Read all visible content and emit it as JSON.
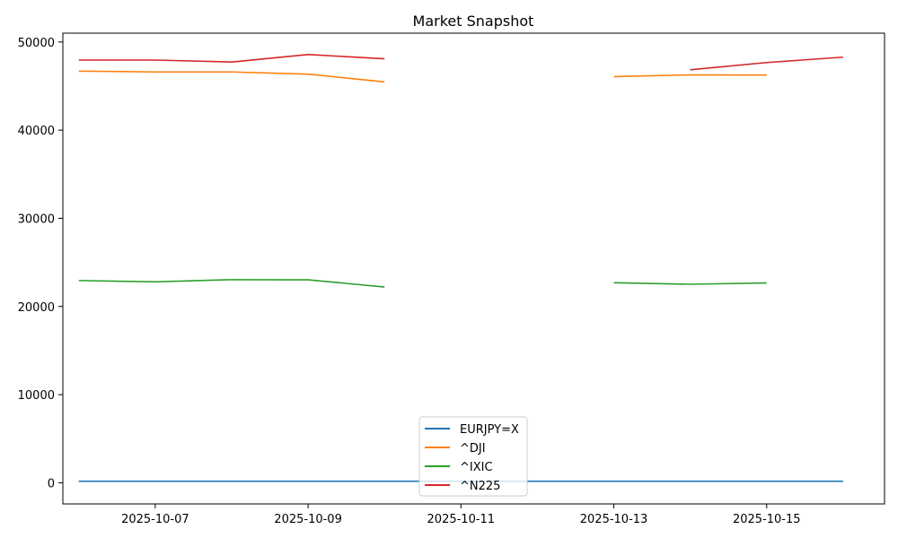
{
  "chart_data": {
    "type": "line",
    "title": "Market Snapshot",
    "xlabel": "",
    "ylabel": "",
    "x": [
      "2025-10-06",
      "2025-10-07",
      "2025-10-08",
      "2025-10-09",
      "2025-10-10",
      "2025-10-11",
      "2025-10-12",
      "2025-10-13",
      "2025-10-14",
      "2025-10-15",
      "2025-10-16"
    ],
    "xlim": [
      "2025-10-05T19:00",
      "2025-10-16T13:00"
    ],
    "ylim": [
      -2400,
      51000
    ],
    "xticks": [
      "2025-10-07",
      "2025-10-09",
      "2025-10-11",
      "2025-10-13",
      "2025-10-15"
    ],
    "yticks": [
      0,
      10000,
      20000,
      30000,
      40000,
      50000
    ],
    "grid": false,
    "legend_position": "lower center",
    "series": [
      {
        "name": "EURJPY=X",
        "color": "#1f77b4",
        "values": [
          176,
          176,
          177,
          177,
          176,
          175,
          175,
          175,
          176,
          176,
          176
        ]
      },
      {
        "name": "^DJI",
        "color": "#ff7f0e",
        "values": [
          46700,
          46600,
          46600,
          46350,
          45480,
          null,
          null,
          46070,
          46270,
          46250,
          null
        ]
      },
      {
        "name": "^IXIC",
        "color": "#2ca02c",
        "values": [
          22940,
          22790,
          23040,
          23020,
          22210,
          null,
          null,
          22690,
          22520,
          22670,
          null
        ]
      },
      {
        "name": "^N225",
        "color": "#d62728",
        "values": [
          47950,
          47950,
          47730,
          48580,
          48090,
          null,
          null,
          null,
          46850,
          47670,
          48280
        ]
      }
    ]
  }
}
